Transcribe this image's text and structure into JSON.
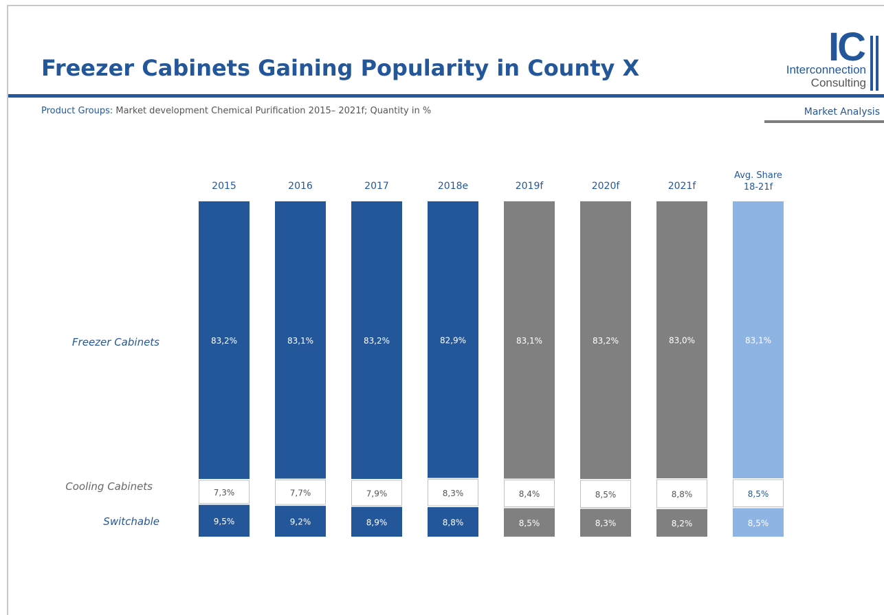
{
  "header": {
    "title": "Freezer Cabinets Gaining Popularity in County X",
    "subtitle_label": "Product Groups:",
    "subtitle_text": " Market development Chemical Purification 2015– 2021f; Quantity in %",
    "section": "Market Analysis"
  },
  "logo": {
    "mark": "IC",
    "line1": "Interconnection",
    "line2": "Consulting"
  },
  "colors": {
    "actual": "#24579a",
    "forecast": "#808080",
    "average": "#8eb4e3",
    "cooling": "#ffffff"
  },
  "chart_data": {
    "type": "bar",
    "stacked": true,
    "categories": [
      "2015",
      "2016",
      "2017",
      "2018e",
      "2019f",
      "2020f",
      "2021f",
      "Avg. Share 18-21f"
    ],
    "category_kind": [
      "actual",
      "actual",
      "actual",
      "actual",
      "forecast",
      "forecast",
      "forecast",
      "average"
    ],
    "series": [
      {
        "name": "Freezer Cabinets",
        "values": [
          83.2,
          83.1,
          83.2,
          82.9,
          83.1,
          83.2,
          83.0,
          83.1
        ],
        "labels": [
          "83,2%",
          "83,1%",
          "83,2%",
          "82,9%",
          "83,1%",
          "83,2%",
          "83,0%",
          "83,1%"
        ]
      },
      {
        "name": "Cooling Cabinets",
        "values": [
          7.3,
          7.7,
          7.9,
          8.3,
          8.4,
          8.5,
          8.8,
          8.5
        ],
        "labels": [
          "7,3%",
          "7,7%",
          "7,9%",
          "8,3%",
          "8,4%",
          "8,5%",
          "8,8%",
          "8,5%"
        ]
      },
      {
        "name": "Switchable",
        "values": [
          9.5,
          9.2,
          8.9,
          8.8,
          8.5,
          8.3,
          8.2,
          8.5
        ],
        "labels": [
          "9,5%",
          "9,2%",
          "8,9%",
          "8,8%",
          "8,5%",
          "8,3%",
          "8,2%",
          "8,5%"
        ]
      }
    ]
  }
}
